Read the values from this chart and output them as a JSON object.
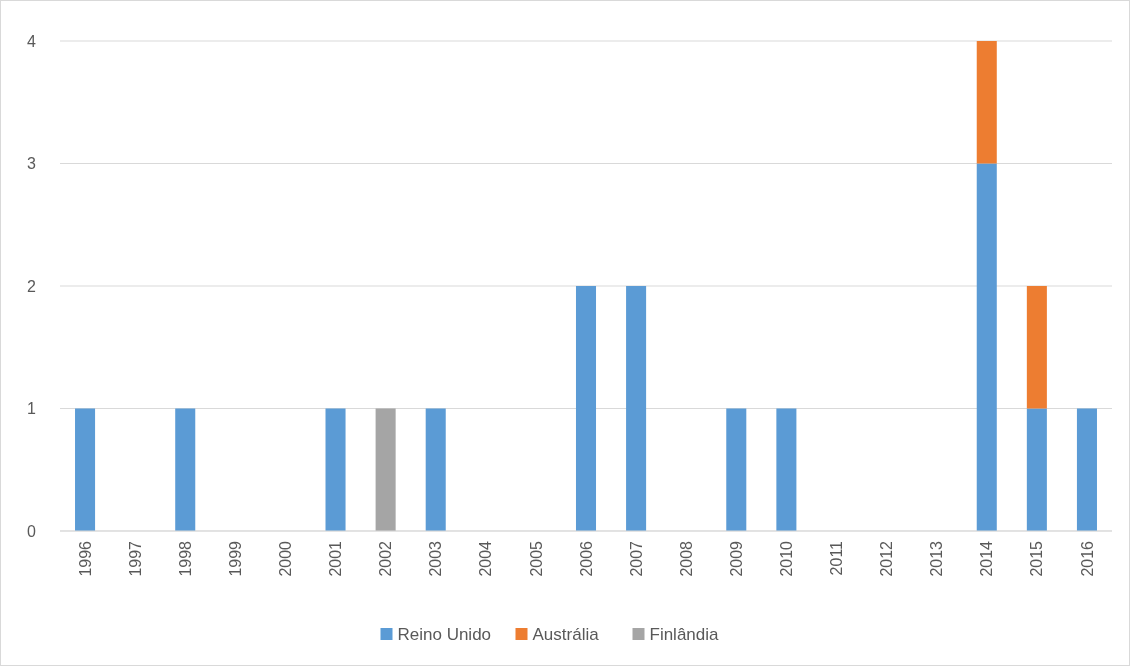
{
  "chart_data": {
    "type": "bar",
    "stacked": true,
    "categories": [
      "1996",
      "1997",
      "1998",
      "1999",
      "2000",
      "2001",
      "2002",
      "2003",
      "2004",
      "2005",
      "2006",
      "2007",
      "2008",
      "2009",
      "2010",
      "2011",
      "2012",
      "2013",
      "2014",
      "2015",
      "2016"
    ],
    "series": [
      {
        "name": "Reino Unido",
        "color": "#5b9bd5",
        "values": [
          1,
          0,
          1,
          0,
          0,
          1,
          0,
          1,
          0,
          0,
          2,
          2,
          0,
          1,
          1,
          0,
          0,
          0,
          3,
          1,
          1
        ]
      },
      {
        "name": "Austrália",
        "color": "#ed7d31",
        "values": [
          0,
          0,
          0,
          0,
          0,
          0,
          0,
          0,
          0,
          0,
          0,
          0,
          0,
          0,
          0,
          0,
          0,
          0,
          1,
          1,
          0
        ]
      },
      {
        "name": "Finlândia",
        "color": "#a5a5a5",
        "values": [
          0,
          0,
          0,
          0,
          0,
          0,
          1,
          0,
          0,
          0,
          0,
          0,
          0,
          0,
          0,
          0,
          0,
          0,
          0,
          0,
          0
        ]
      }
    ],
    "ylim": [
      0,
      4
    ],
    "yticks": [
      0,
      1,
      2,
      3,
      4
    ],
    "grid": "y",
    "legend": "bottom"
  }
}
